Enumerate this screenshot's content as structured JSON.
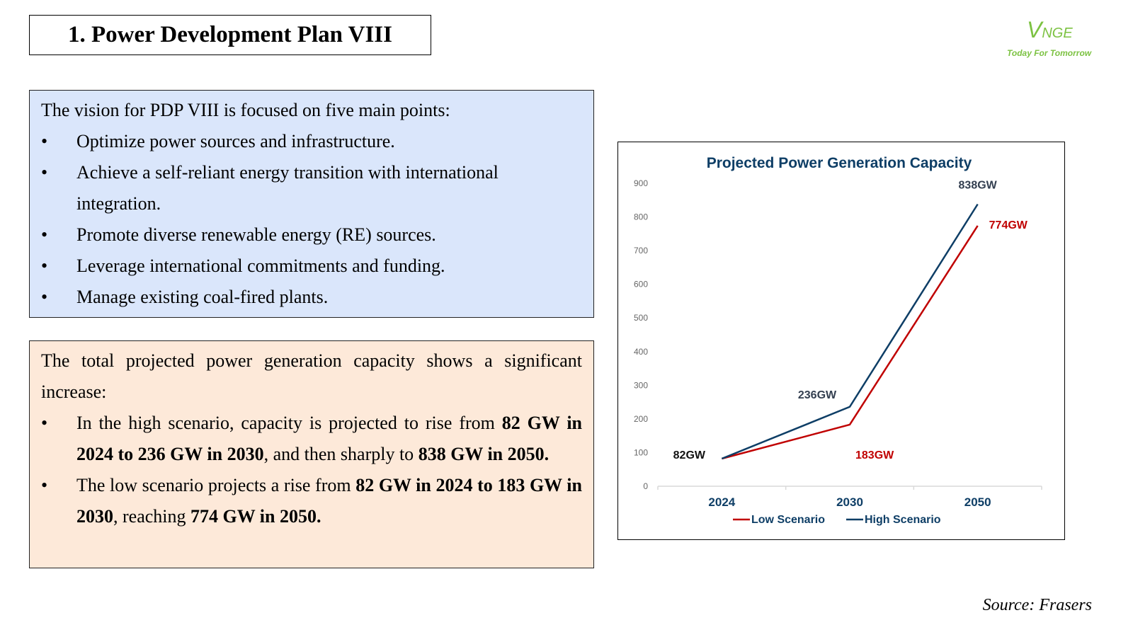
{
  "header": {
    "title": "1. Power Development Plan VIII"
  },
  "logo": {
    "mark_first": "V",
    "mark_rest": "NGE",
    "tagline": "Today For Tomorrow",
    "color": "#7cc242"
  },
  "vision": {
    "intro": "The vision for PDP VIII is focused on five main points:",
    "bullet": "•",
    "items": [
      "Optimize power sources and infrastructure.",
      "Achieve a self-reliant energy transition with international integration.",
      "Promote diverse renewable energy (RE) sources.",
      "Leverage international commitments and funding.",
      "Manage existing coal-fired plants."
    ]
  },
  "capacity_summary": {
    "intro": "The total projected power generation capacity shows a significant increase:",
    "bullet": "•",
    "high": {
      "t1": "In the high scenario, capacity is projected to rise from ",
      "b1": "82 GW in 2024 to 236 GW in 2030",
      "t2": ", and then sharply to ",
      "b2": "838 GW in 2050."
    },
    "low": {
      "t1": "The low scenario projects a rise from ",
      "b1": "82 GW in 2024 to 183 GW in 2030",
      "t2": ", reaching ",
      "b2": "774 GW in 2050."
    }
  },
  "chart_data": {
    "type": "line",
    "title": "Projected Power Generation Capacity",
    "xlabel": "",
    "ylabel": "",
    "categories": [
      "2024",
      "2030",
      "2050"
    ],
    "ylim": [
      0,
      900
    ],
    "yticks": [
      0,
      100,
      200,
      300,
      400,
      500,
      600,
      700,
      800,
      900
    ],
    "grid": false,
    "legend_position": "bottom",
    "series": [
      {
        "name": "Low Scenario",
        "color": "#c00000",
        "values": [
          82,
          183,
          774
        ],
        "labels": [
          "",
          "183GW",
          "774GW"
        ]
      },
      {
        "name": "High Scenario",
        "color": "#0e3e66",
        "values": [
          82,
          236,
          838
        ],
        "labels": [
          "82GW",
          "236GW",
          "838GW"
        ]
      }
    ]
  },
  "footer": {
    "source": "Source: Frasers"
  }
}
